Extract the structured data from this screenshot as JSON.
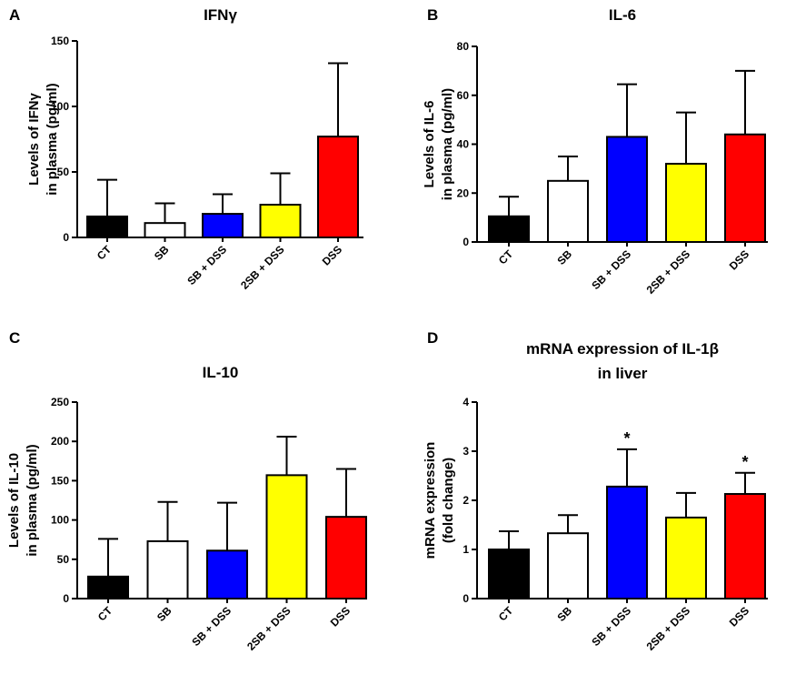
{
  "colors": {
    "CT": "#000000",
    "SB": "#ffffff",
    "SB + DSS": "#0000ff",
    "2SB + DSS": "#ffff00",
    "DSS": "#ff0000",
    "stroke": "#000000"
  },
  "chart_data": [
    {
      "type": "bar",
      "panel": "A",
      "title": "IFNγ",
      "title_lines": [
        "IFNγ"
      ],
      "ylabel_lines": [
        "Levels of IFNγ",
        "in plasma (pg/ml)"
      ],
      "xlabel": "",
      "categories": [
        "CT",
        "SB",
        "SB + DSS",
        "2SB + DSS",
        "DSS"
      ],
      "values": [
        16,
        11,
        18,
        25,
        77
      ],
      "errors": [
        28,
        15,
        15,
        24,
        56
      ],
      "significance": [
        "",
        "",
        "",
        "",
        ""
      ],
      "ylim": [
        0,
        150
      ],
      "yticks": [
        0,
        50,
        100,
        150
      ]
    },
    {
      "type": "bar",
      "panel": "B",
      "title": "IL-6",
      "title_lines": [
        "IL-6"
      ],
      "ylabel_lines": [
        "Levels of IL-6",
        "in plasma (pg/ml)"
      ],
      "xlabel": "",
      "categories": [
        "CT",
        "SB",
        "SB + DSS",
        "2SB + DSS",
        "DSS"
      ],
      "values": [
        10.5,
        25,
        43,
        32,
        44
      ],
      "errors": [
        8,
        10,
        21.5,
        21,
        26
      ],
      "significance": [
        "",
        "",
        "",
        "",
        ""
      ],
      "ylim": [
        0,
        80
      ],
      "yticks": [
        0,
        20,
        40,
        60,
        80
      ]
    },
    {
      "type": "bar",
      "panel": "C",
      "title": "IL-10",
      "title_lines": [
        "IL-10"
      ],
      "ylabel_lines": [
        "Levels of IL-10",
        "in plasma (pg/ml)"
      ],
      "xlabel": "",
      "categories": [
        "CT",
        "SB",
        "SB + DSS",
        "2SB + DSS",
        "DSS"
      ],
      "values": [
        28,
        73,
        61,
        157,
        104
      ],
      "errors": [
        48,
        50,
        61,
        49,
        61
      ],
      "significance": [
        "",
        "",
        "",
        "",
        ""
      ],
      "ylim": [
        0,
        250
      ],
      "yticks": [
        0,
        50,
        100,
        150,
        200,
        250
      ]
    },
    {
      "type": "bar",
      "panel": "D",
      "title": "mRNA expression of IL-1β in liver",
      "title_lines": [
        "mRNA expression of IL-1β",
        "in liver"
      ],
      "ylabel_lines": [
        "mRNA expression",
        "(fold change)"
      ],
      "xlabel": "",
      "categories": [
        "CT",
        "SB",
        "SB + DSS",
        "2SB + DSS",
        "DSS"
      ],
      "values": [
        1.0,
        1.33,
        2.28,
        1.65,
        2.13
      ],
      "errors": [
        0.37,
        0.37,
        0.76,
        0.5,
        0.43
      ],
      "significance": [
        "",
        "",
        "*",
        "",
        "*"
      ],
      "ylim": [
        0,
        4
      ],
      "yticks": [
        0,
        1,
        2,
        3,
        4
      ]
    }
  ]
}
